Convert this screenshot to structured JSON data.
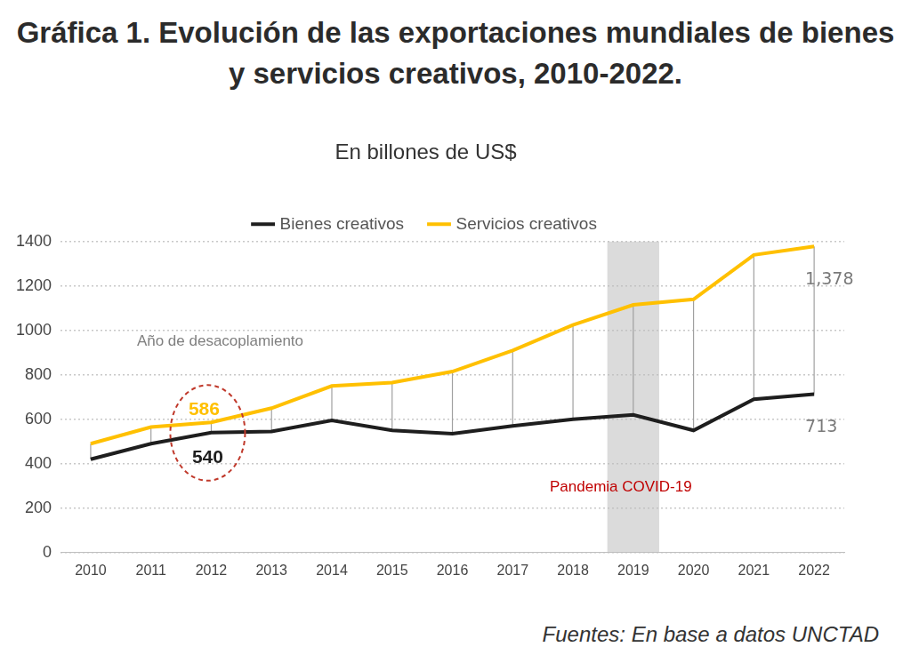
{
  "chart_data": {
    "type": "line",
    "title": "Gráfica 1. Evolución de las exportaciones mundiales de bienes y servicios creativos, 2010-2022.",
    "subtitle": "En billones de US$",
    "source": "Fuentes: En base a datos UNCTAD",
    "categories": [
      "2010",
      "2011",
      "2012",
      "2013",
      "2014",
      "2015",
      "2016",
      "2017",
      "2018",
      "2019",
      "2020",
      "2021",
      "2022"
    ],
    "series": [
      {
        "name": "Bienes creativos",
        "color": "#1e1e1e",
        "values": [
          420,
          490,
          540,
          545,
          595,
          550,
          535,
          570,
          600,
          620,
          550,
          690,
          713
        ],
        "value_labels": [
          null,
          null,
          "540",
          null,
          null,
          null,
          null,
          null,
          null,
          null,
          null,
          null,
          "713"
        ]
      },
      {
        "name": "Servicios creativos",
        "color": "#ffc000",
        "values": [
          490,
          565,
          586,
          650,
          750,
          765,
          815,
          910,
          1025,
          1115,
          1140,
          1340,
          1378
        ],
        "value_labels": [
          null,
          null,
          "586",
          null,
          null,
          null,
          null,
          null,
          null,
          null,
          null,
          null,
          "1,378"
        ]
      }
    ],
    "ylim": [
      0,
      1400
    ],
    "yticks": [
      0,
      200,
      400,
      600,
      800,
      1000,
      1200,
      1400
    ],
    "grid": true,
    "legend": "top",
    "annotations": [
      {
        "text": "Año de desacoplamiento",
        "category": "2012"
      },
      {
        "text": "Pandemia COVID-19",
        "category": "2019"
      }
    ]
  }
}
